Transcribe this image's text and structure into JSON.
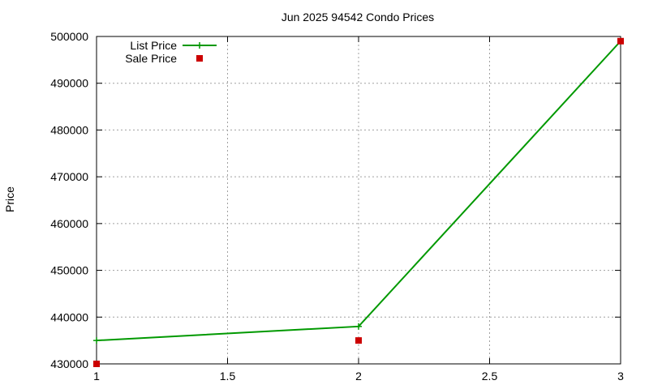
{
  "chart_data": {
    "type": "line",
    "title": "Jun 2025 94542 Condo Prices",
    "xlabel": "",
    "ylabel": "Price",
    "xlim": [
      1,
      3
    ],
    "ylim": [
      430000,
      500000
    ],
    "x_ticks": [
      "1",
      "1.5",
      "2",
      "2.5",
      "3"
    ],
    "y_ticks": [
      "430000",
      "440000",
      "450000",
      "460000",
      "470000",
      "480000",
      "490000",
      "500000"
    ],
    "grid": true,
    "legend_position": "top-left",
    "series": [
      {
        "name": "List Price",
        "style": "line+cross",
        "color": "#009900",
        "x": [
          1,
          2,
          3
        ],
        "y": [
          435000,
          438000,
          499000
        ]
      },
      {
        "name": "Sale Price",
        "style": "square",
        "color": "#cc0000",
        "x": [
          1,
          2,
          3
        ],
        "y": [
          430000,
          435000,
          499000
        ]
      }
    ]
  }
}
